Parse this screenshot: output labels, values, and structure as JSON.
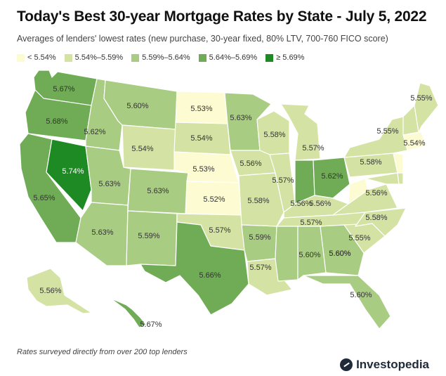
{
  "title": "Today's Best 30-year Mortgage Rates by State - July 5, 2022",
  "subtitle": "Averages of lenders' lowest rates (new purchase, 30-year fixed, 80% LTV, 700-760 FICO score)",
  "legend": [
    {
      "label": "< 5.54%",
      "color": "#fdfbd2"
    },
    {
      "label": "5.54%–5.59%",
      "color": "#d4e3a4"
    },
    {
      "label": "5.59%–5.64%",
      "color": "#a8cc82"
    },
    {
      "label": "5.64%–5.69%",
      "color": "#6fac55"
    },
    {
      "label": "≥ 5.69%",
      "color": "#1e8a24"
    }
  ],
  "footnote": "Rates surveyed directly from over 200 top lenders",
  "brand": "Investopedia",
  "states": [
    {
      "name": "WA",
      "rate": "5.67%"
    },
    {
      "name": "OR",
      "rate": "5.68%"
    },
    {
      "name": "CA",
      "rate": "5.65%"
    },
    {
      "name": "NV",
      "rate": "5.74%"
    },
    {
      "name": "ID",
      "rate": "5.62%"
    },
    {
      "name": "MT",
      "rate": "5.60%"
    },
    {
      "name": "WY",
      "rate": "5.54%"
    },
    {
      "name": "UT",
      "rate": "5.63%"
    },
    {
      "name": "AZ",
      "rate": "5.63%"
    },
    {
      "name": "CO",
      "rate": "5.63%"
    },
    {
      "name": "NM",
      "rate": "5.59%"
    },
    {
      "name": "ND",
      "rate": "5.53%"
    },
    {
      "name": "SD",
      "rate": "5.54%"
    },
    {
      "name": "NE",
      "rate": "5.53%"
    },
    {
      "name": "KS",
      "rate": "5.52%"
    },
    {
      "name": "OK",
      "rate": "5.57%"
    },
    {
      "name": "TX",
      "rate": "5.66%"
    },
    {
      "name": "MN",
      "rate": "5.63%"
    },
    {
      "name": "IA",
      "rate": "5.56%"
    },
    {
      "name": "MO",
      "rate": "5.58%"
    },
    {
      "name": "AR",
      "rate": "5.59%"
    },
    {
      "name": "LA",
      "rate": "5.57%"
    },
    {
      "name": "WI",
      "rate": "5.58%"
    },
    {
      "name": "IL",
      "rate": "5.57%"
    },
    {
      "name": "MI",
      "rate": "5.57%"
    },
    {
      "name": "IN",
      "rate": "5.56%"
    },
    {
      "name": "OH",
      "rate": "5.62%"
    },
    {
      "name": "KY",
      "rate": "5.56%"
    },
    {
      "name": "TN",
      "rate": "5.57%"
    },
    {
      "name": "MS",
      "rate": "5.60%"
    },
    {
      "name": "AL",
      "rate": "5.60%"
    },
    {
      "name": "GA",
      "rate": "5.60%"
    },
    {
      "name": "FL",
      "rate": "5.60%"
    },
    {
      "name": "SC",
      "rate": "5.55%"
    },
    {
      "name": "NC",
      "rate": "5.58%"
    },
    {
      "name": "VA",
      "rate": "5.56%"
    },
    {
      "name": "WV",
      "rate": ""
    },
    {
      "name": "PA",
      "rate": "5.58%"
    },
    {
      "name": "NY",
      "rate": "5.55%"
    },
    {
      "name": "NJ",
      "rate": ""
    },
    {
      "name": "MD",
      "rate": ""
    },
    {
      "name": "DE",
      "rate": ""
    },
    {
      "name": "NE-states",
      "rate": "5.54%"
    },
    {
      "name": "VT-NH",
      "rate": ""
    },
    {
      "name": "ME",
      "rate": "5.55%"
    },
    {
      "name": "AK",
      "rate": "5.56%"
    },
    {
      "name": "HI",
      "rate": "5.67%"
    }
  ]
}
